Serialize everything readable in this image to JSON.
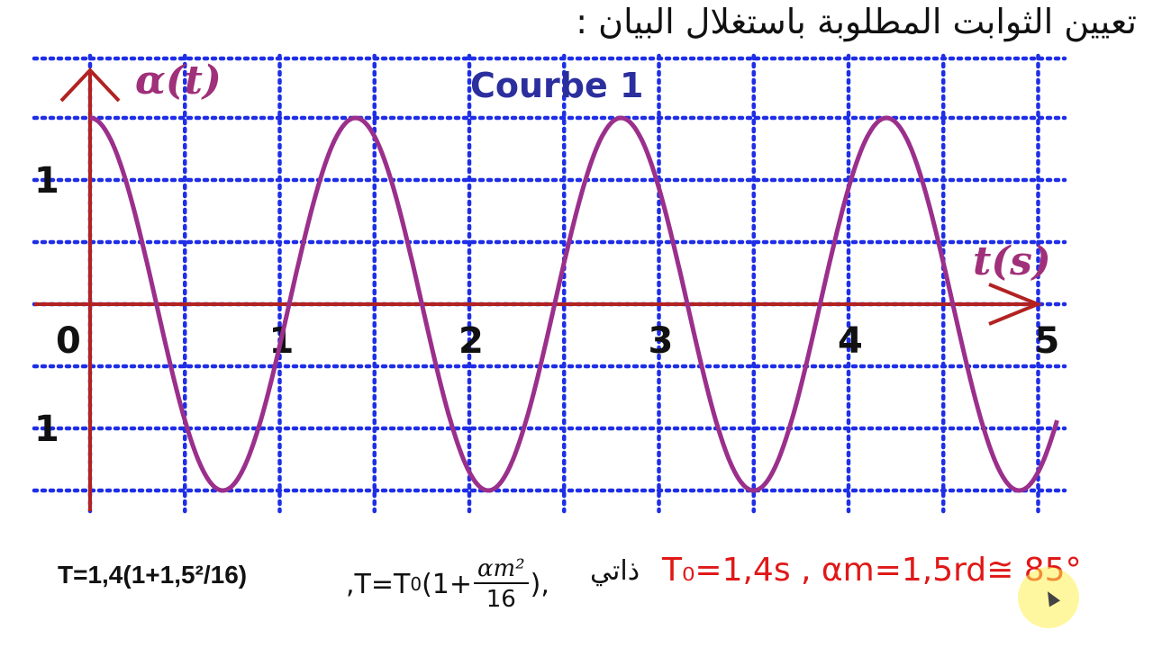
{
  "heading": "تعيين الثوابت المطلوبة باستغلال البيان :",
  "chart_data": {
    "type": "line",
    "title": "Courbe 1",
    "xlabel": "t(s)",
    "ylabel": "α(t)",
    "x_ticks": [
      "0",
      "1",
      "2",
      "3",
      "4",
      "5"
    ],
    "y_ticks": [
      "1",
      "-1"
    ],
    "xlim": [
      0,
      5.1
    ],
    "ylim": [
      -1.5,
      1.5
    ],
    "grid": true,
    "series": [
      {
        "x": [
          0,
          0.35,
          0.7,
          1.05,
          1.4,
          1.75,
          2.1,
          2.45,
          2.8,
          3.15,
          3.5,
          3.85,
          4.2,
          4.55,
          4.9,
          5.1
        ],
        "y": [
          1.5,
          0,
          -1.5,
          0,
          1.5,
          0,
          -1.5,
          0,
          1.5,
          0,
          -1.5,
          0,
          1.5,
          0,
          -1.5,
          -0.95
        ]
      }
    ],
    "colors": {
      "curve": "#9b2f8c",
      "axes": "#b22222",
      "grid": "#1f2ee6"
    }
  },
  "formula": {
    "left": "T=1,4(1+1,5²/16)",
    "mid_prefix": ",T=T",
    "mid_sub": "0",
    "mid_open": "(1+",
    "frac_num": "αm²",
    "frac_den": "16",
    "mid_close": "),",
    "arabic": "ذاتي",
    "right": "T₀=1,4s , αm=1,5rd≅ 85°"
  }
}
